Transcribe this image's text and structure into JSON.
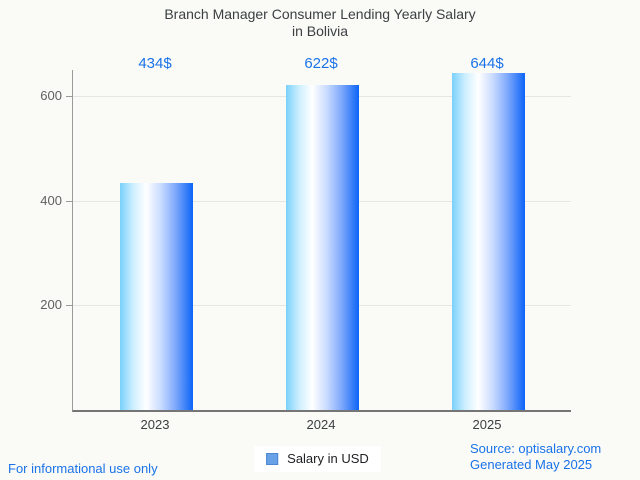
{
  "figure": {
    "background": "#fafaf7",
    "accent_color": "#1a73e8",
    "gridline_color": "#e6e6e3",
    "axis_color": "#9a9a9a",
    "baseline_color": "#757575"
  },
  "chart_data": {
    "type": "bar",
    "title": "Branch Manager Consumer Lending Yearly Salary in Bolivia",
    "title_lines": [
      "Branch Manager Consumer Lending Yearly Salary",
      "in Bolivia"
    ],
    "categories": [
      "2023",
      "2024",
      "2025"
    ],
    "series": [
      {
        "name": "Salary in USD",
        "values": [
          434,
          622,
          644
        ]
      }
    ],
    "value_labels": [
      "434$",
      "622$",
      "644$"
    ],
    "xlabel": "",
    "ylabel": "",
    "y_ticks": [
      200,
      400,
      600
    ],
    "ylim": [
      0,
      650
    ],
    "grid": true,
    "legend_position": "bottom-center",
    "bar_gradient": [
      "#7ad1fc",
      "#ffffff",
      "#0c64f7"
    ],
    "value_label_color": "#1a73e8"
  },
  "legend": {
    "label": "Salary in USD",
    "marker_color": "#68a1e5",
    "marker_border_color": "#4d86d1"
  },
  "footer": {
    "left_note": "For informational use only",
    "source": "Source: optisalary.com",
    "generated": "Generated May 2025"
  }
}
